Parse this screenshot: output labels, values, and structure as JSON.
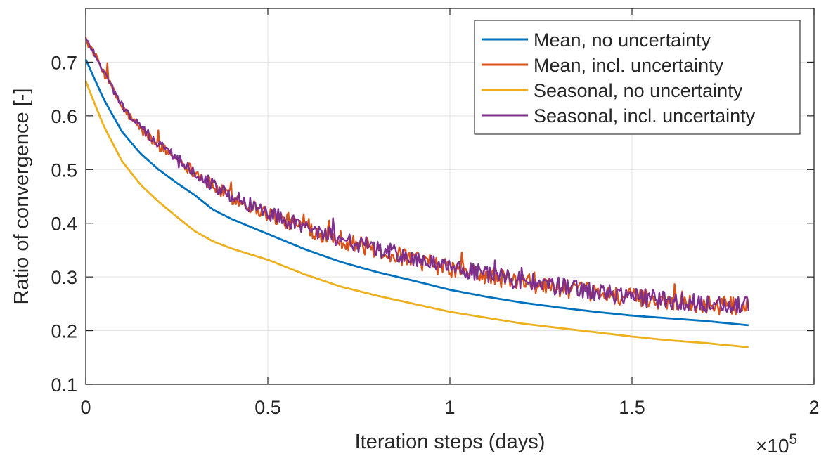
{
  "chart_data": {
    "type": "line",
    "title": "",
    "xlabel": "Iteration steps (days)",
    "ylabel": "Ratio of convergence [-]",
    "xlim": [
      0,
      200000
    ],
    "ylim": [
      0.1,
      0.8
    ],
    "xticks": [
      0,
      50000,
      100000,
      150000,
      200000
    ],
    "xtick_labels": [
      "0",
      "0.5",
      "1",
      "1.5",
      "2"
    ],
    "x_exponent_label": "×10",
    "x_exponent_power": "5",
    "yticks": [
      0.1,
      0.2,
      0.3,
      0.4,
      0.5,
      0.6,
      0.7
    ],
    "ytick_labels": [
      "0.1",
      "0.2",
      "0.3",
      "0.4",
      "0.5",
      "0.6",
      "0.7"
    ],
    "grid": true,
    "legend_position": "top-right",
    "series": [
      {
        "name": "Mean, no uncertainty",
        "color": "#0072BD",
        "x": [
          0,
          2000,
          5000,
          10000,
          15000,
          20000,
          25000,
          30000,
          35000,
          40000,
          50000,
          60000,
          70000,
          80000,
          90000,
          100000,
          110000,
          120000,
          130000,
          140000,
          150000,
          160000,
          170000,
          182000
        ],
        "y": [
          0.705,
          0.675,
          0.63,
          0.57,
          0.53,
          0.5,
          0.475,
          0.452,
          0.425,
          0.408,
          0.38,
          0.352,
          0.328,
          0.309,
          0.293,
          0.276,
          0.263,
          0.252,
          0.243,
          0.235,
          0.228,
          0.223,
          0.218,
          0.21
        ]
      },
      {
        "name": "Mean, incl. uncertainty",
        "color": "#D95319",
        "x": [
          0,
          2000,
          5000,
          10000,
          15000,
          20000,
          25000,
          30000,
          35000,
          40000,
          50000,
          60000,
          70000,
          80000,
          90000,
          100000,
          110000,
          120000,
          130000,
          140000,
          150000,
          160000,
          170000,
          182000
        ],
        "y": [
          0.74,
          0.72,
          0.68,
          0.615,
          0.575,
          0.545,
          0.52,
          0.495,
          0.468,
          0.448,
          0.418,
          0.392,
          0.37,
          0.35,
          0.332,
          0.315,
          0.302,
          0.29,
          0.28,
          0.27,
          0.262,
          0.255,
          0.248,
          0.245
        ]
      },
      {
        "name": "Seasonal, no uncertainty",
        "color": "#EDB120",
        "x": [
          0,
          2000,
          5000,
          10000,
          15000,
          20000,
          25000,
          30000,
          35000,
          40000,
          50000,
          60000,
          70000,
          80000,
          90000,
          100000,
          110000,
          120000,
          130000,
          140000,
          150000,
          160000,
          170000,
          182000
        ],
        "y": [
          0.665,
          0.63,
          0.58,
          0.515,
          0.472,
          0.44,
          0.412,
          0.385,
          0.366,
          0.353,
          0.332,
          0.305,
          0.282,
          0.265,
          0.25,
          0.235,
          0.224,
          0.213,
          0.205,
          0.197,
          0.189,
          0.182,
          0.177,
          0.169
        ]
      },
      {
        "name": "Seasonal, incl. uncertainty",
        "color": "#7E2F8E",
        "x": [
          0,
          2000,
          5000,
          10000,
          15000,
          20000,
          25000,
          30000,
          35000,
          40000,
          50000,
          60000,
          70000,
          80000,
          90000,
          100000,
          110000,
          120000,
          130000,
          140000,
          150000,
          160000,
          170000,
          182000
        ],
        "y": [
          0.742,
          0.722,
          0.682,
          0.618,
          0.578,
          0.548,
          0.522,
          0.497,
          0.47,
          0.45,
          0.42,
          0.394,
          0.372,
          0.352,
          0.334,
          0.317,
          0.304,
          0.292,
          0.282,
          0.272,
          0.264,
          0.257,
          0.25,
          0.247
        ]
      }
    ]
  }
}
